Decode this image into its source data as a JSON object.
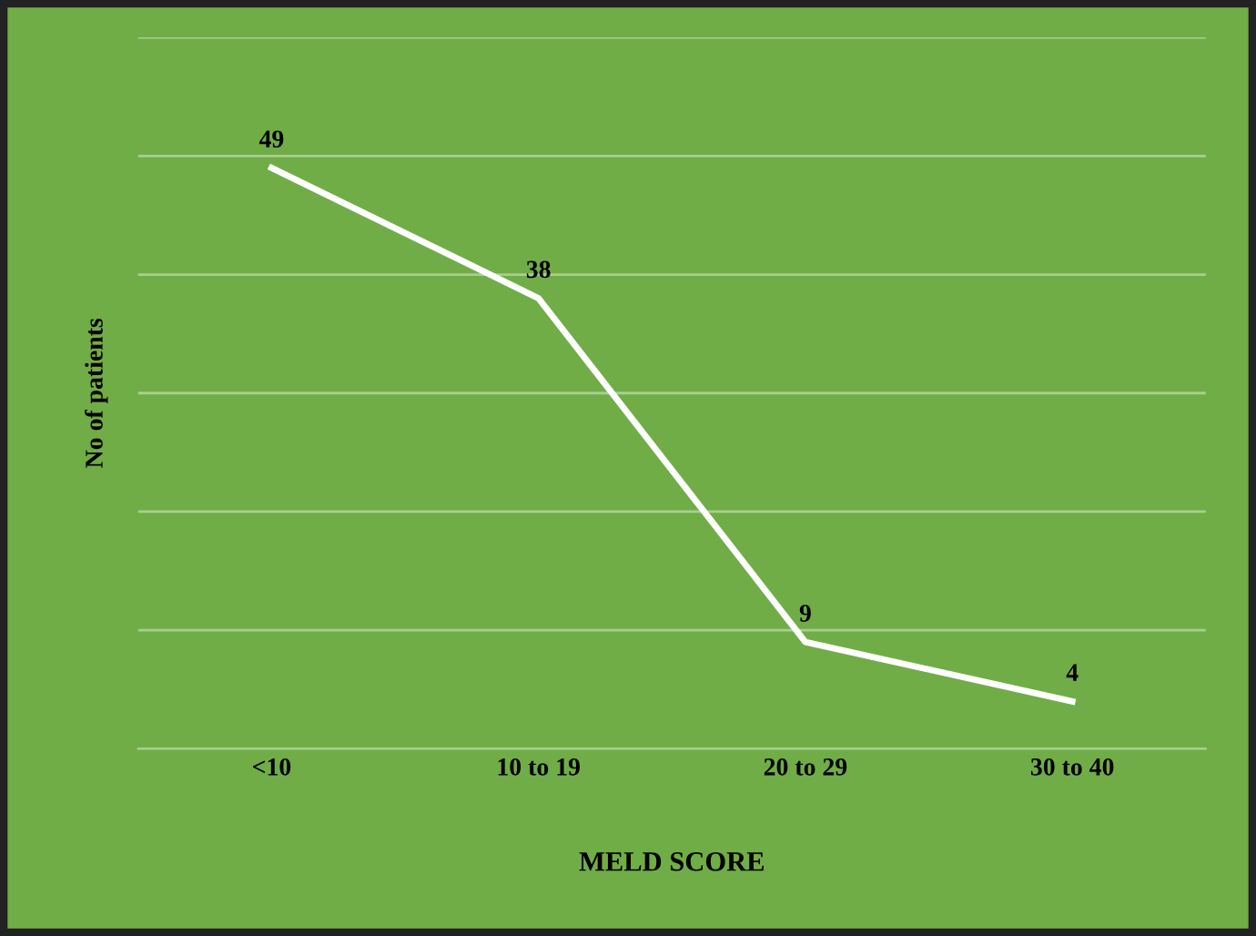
{
  "chart_data": {
    "type": "line",
    "xlabel": "MELD SCORE",
    "ylabel": "No of patients",
    "categories": [
      "<10",
      "10 to 19",
      "20 to 29",
      "30 to 40"
    ],
    "series": [
      {
        "color": "#ffffff",
        "values": [
          49,
          38,
          9,
          4
        ]
      }
    ],
    "data_labels": true,
    "line_style": "solid",
    "ylim": [
      0,
      60
    ],
    "yticks": [
      {
        "value": 0,
        "label": null
      },
      {
        "value": 10,
        "label": null
      },
      {
        "value": 20,
        "label": null
      },
      {
        "value": 30,
        "label": null
      },
      {
        "value": 40,
        "label": null
      },
      {
        "value": 50,
        "label": null
      },
      {
        "value": 60,
        "label": null
      }
    ],
    "grid": "y",
    "tick_labels": "x",
    "legend": false
  }
}
